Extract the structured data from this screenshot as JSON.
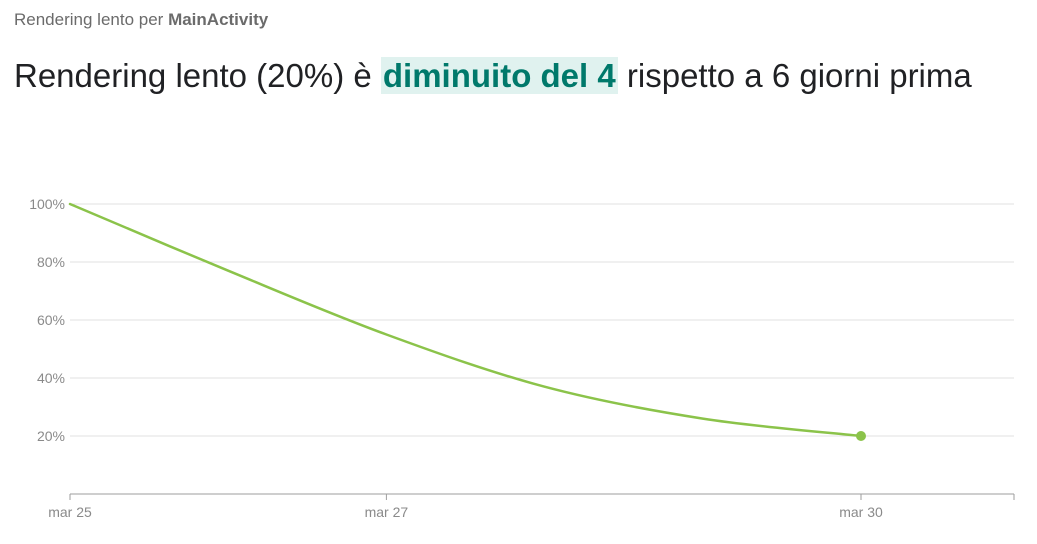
{
  "header": {
    "subtitle_prefix": "Rendering lento per",
    "subtitle_app": "MainActivity",
    "headline_before": "Rendering lento (20%) è",
    "headline_highlight": "diminuito del 4",
    "headline_after": "rispetto a 6 giorni prima"
  },
  "colors": {
    "line": "#8bc34a",
    "highlight_bg": "#e0f2ef",
    "highlight_text": "#00796b"
  },
  "chart_data": {
    "type": "line",
    "title": "",
    "xlabel": "",
    "ylabel": "",
    "x_ticks": [
      "mar 25",
      "mar 27",
      "mar 30"
    ],
    "y_ticks": [
      "100%",
      "80%",
      "60%",
      "40%",
      "20%"
    ],
    "ylim": [
      0,
      100
    ],
    "grid": true,
    "series": [
      {
        "x": [
          "mar 25",
          "mar 26",
          "mar 27",
          "mar 28",
          "mar 29",
          "mar 30"
        ],
        "values": [
          100,
          77,
          55,
          37,
          26,
          20
        ]
      }
    ]
  }
}
